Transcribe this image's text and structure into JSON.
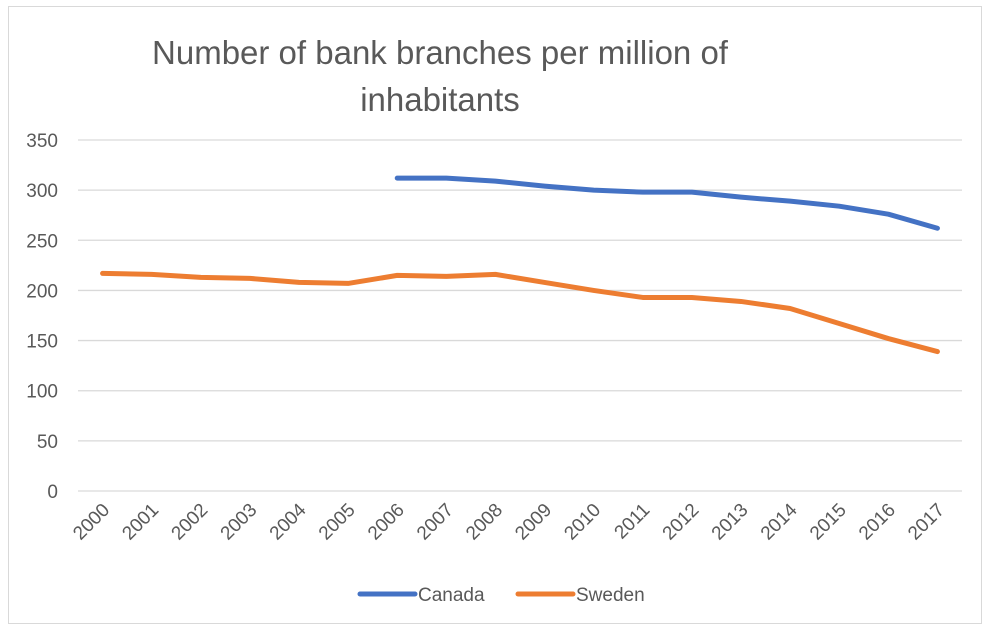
{
  "chart_data": {
    "type": "line",
    "title_lines": [
      "Number of bank branches per million of",
      "inhabitants"
    ],
    "x": [
      "2000",
      "2001",
      "2002",
      "2003",
      "2004",
      "2005",
      "2006",
      "2007",
      "2008",
      "2009",
      "2010",
      "2011",
      "2012",
      "2013",
      "2014",
      "2015",
      "2016",
      "2017"
    ],
    "y_ticks": [
      "0",
      "50",
      "100",
      "150",
      "200",
      "250",
      "300",
      "350"
    ],
    "ylim": [
      0,
      350
    ],
    "grid": true,
    "legend_position": "bottom",
    "series": [
      {
        "name": "Canada",
        "color": "#4472c4",
        "values": [
          null,
          null,
          null,
          null,
          null,
          null,
          312,
          312,
          309,
          304,
          300,
          298,
          298,
          293,
          289,
          284,
          276,
          262
        ]
      },
      {
        "name": "Sweden",
        "color": "#ed7d31",
        "values": [
          217,
          216,
          213,
          212,
          208,
          207,
          215,
          214,
          216,
          208,
          200,
          193,
          193,
          189,
          182,
          167,
          152,
          139
        ]
      }
    ]
  }
}
